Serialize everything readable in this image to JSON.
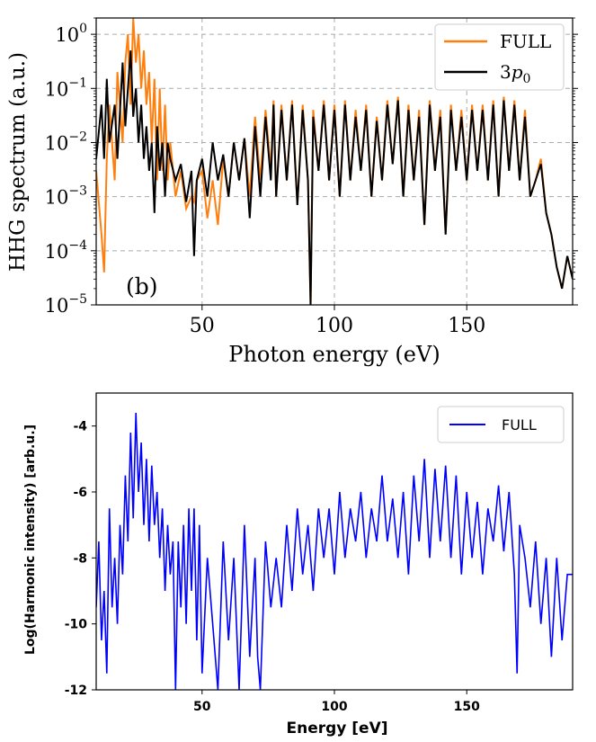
{
  "chart_data": [
    {
      "type": "line",
      "panel": "(b)",
      "xlabel": "Photon energy (eV)",
      "ylabel": "HHG spectrum (a.u.)",
      "yscale": "log",
      "xlim": [
        10,
        190
      ],
      "ylim": [
        1e-05,
        2
      ],
      "xticks": [
        50,
        100,
        150
      ],
      "xtick_labels": [
        "50",
        "100",
        "150"
      ],
      "yticks": [
        1e-05,
        0.0001,
        0.001,
        0.01,
        0.1,
        1
      ],
      "ytick_base": "10",
      "ytick_exponents": [
        "−5",
        "−4",
        "−3",
        "−2",
        "−1",
        "0"
      ],
      "grid": true,
      "legend_position": "top-right",
      "series": [
        {
          "name": "FULL",
          "color": "#ff7f0e",
          "x": [
            10,
            12,
            13,
            14,
            15,
            17,
            18,
            20,
            21,
            22,
            23,
            24,
            25,
            26,
            27,
            28,
            29,
            30,
            31,
            32,
            33,
            34,
            35,
            36,
            37,
            38,
            40,
            42,
            44,
            46,
            47,
            48,
            50,
            52,
            54,
            56,
            58,
            60,
            62,
            64,
            66,
            68,
            70,
            72,
            74,
            76,
            77,
            78,
            80,
            82,
            84,
            86,
            88,
            90,
            91,
            92,
            94,
            96,
            98,
            100,
            102,
            104,
            106,
            108,
            110,
            112,
            114,
            116,
            118,
            120,
            122,
            124,
            126,
            128,
            130,
            132,
            134,
            136,
            138,
            140,
            142,
            144,
            146,
            148,
            150,
            152,
            154,
            156,
            158,
            160,
            162,
            164,
            166,
            168,
            170,
            172,
            174,
            176,
            178,
            180,
            182,
            184,
            186,
            188,
            190
          ],
          "y": [
            0.003,
            0.0002,
            4e-05,
            0.005,
            0.05,
            0.002,
            0.2,
            0.01,
            0.3,
            1.0,
            0.05,
            2.0,
            0.3,
            1.0,
            0.1,
            0.5,
            0.05,
            0.2,
            0.01,
            0.15,
            0.002,
            0.1,
            0.003,
            0.05,
            0.002,
            0.01,
            0.001,
            0.003,
            0.0006,
            0.001,
            0.0008,
            0.002,
            0.003,
            0.0004,
            0.002,
            0.0003,
            0.005,
            0.001,
            0.01,
            0.002,
            0.012,
            0.001,
            0.03,
            0.002,
            0.04,
            0.003,
            0.06,
            0.001,
            0.05,
            0.002,
            0.06,
            0.0007,
            0.05,
            0.002,
            1e-05,
            0.04,
            0.003,
            0.06,
            0.002,
            0.05,
            0.001,
            0.06,
            0.002,
            0.04,
            0.003,
            0.05,
            0.001,
            0.03,
            0.002,
            0.06,
            0.004,
            0.07,
            0.001,
            0.05,
            0.002,
            0.04,
            0.0003,
            0.06,
            0.003,
            0.04,
            0.0002,
            0.05,
            0.003,
            0.04,
            0.002,
            0.05,
            0.003,
            0.05,
            0.002,
            0.06,
            0.001,
            0.07,
            0.003,
            0.06,
            0.002,
            0.04,
            0.001,
            0.002,
            0.005,
            0.0005,
            0.0002,
            5e-05,
            2e-05,
            8e-05,
            3e-05
          ]
        },
        {
          "name": "3p0",
          "color": "#000000",
          "x": [
            10,
            12,
            13,
            14,
            15,
            17,
            18,
            20,
            21,
            22,
            23,
            24,
            25,
            26,
            27,
            28,
            29,
            30,
            31,
            32,
            33,
            34,
            35,
            36,
            37,
            38,
            40,
            42,
            44,
            46,
            47,
            48,
            50,
            52,
            54,
            56,
            58,
            60,
            62,
            64,
            66,
            68,
            70,
            72,
            74,
            76,
            77,
            78,
            80,
            82,
            84,
            86,
            88,
            90,
            91,
            92,
            94,
            96,
            98,
            100,
            102,
            104,
            106,
            108,
            110,
            112,
            114,
            116,
            118,
            120,
            122,
            124,
            126,
            128,
            130,
            132,
            134,
            136,
            138,
            140,
            142,
            144,
            146,
            148,
            150,
            152,
            154,
            156,
            158,
            160,
            162,
            164,
            166,
            168,
            170,
            172,
            174,
            176,
            178,
            180,
            182,
            184,
            186,
            188,
            190
          ],
          "y": [
            0.005,
            0.05,
            0.005,
            0.15,
            0.01,
            0.05,
            0.005,
            0.3,
            0.02,
            0.1,
            0.5,
            0.03,
            0.1,
            0.01,
            0.05,
            0.005,
            0.02,
            0.003,
            0.01,
            0.0005,
            0.02,
            0.003,
            0.01,
            0.001,
            0.01,
            0.005,
            0.002,
            0.004,
            0.0008,
            0.003,
            8e-05,
            0.002,
            0.005,
            0.001,
            0.01,
            0.002,
            0.006,
            0.001,
            0.01,
            0.002,
            0.012,
            0.0004,
            0.02,
            0.001,
            0.03,
            0.002,
            0.05,
            0.001,
            0.04,
            0.002,
            0.05,
            0.0007,
            0.04,
            0.002,
            1e-05,
            0.03,
            0.003,
            0.05,
            0.002,
            0.04,
            0.001,
            0.05,
            0.002,
            0.03,
            0.003,
            0.04,
            0.001,
            0.025,
            0.002,
            0.05,
            0.004,
            0.06,
            0.001,
            0.04,
            0.002,
            0.03,
            0.0003,
            0.05,
            0.003,
            0.03,
            0.0002,
            0.04,
            0.003,
            0.03,
            0.002,
            0.04,
            0.003,
            0.04,
            0.002,
            0.05,
            0.001,
            0.06,
            0.003,
            0.05,
            0.002,
            0.03,
            0.001,
            0.002,
            0.004,
            0.0005,
            0.0002,
            5e-05,
            2e-05,
            8e-05,
            3e-05
          ]
        }
      ]
    },
    {
      "type": "line",
      "xlabel": "Energy [eV]",
      "ylabel": "Log(Harmonic intensity) [arb.u.]",
      "xlim": [
        10,
        190
      ],
      "ylim": [
        -12,
        -3
      ],
      "xticks": [
        50,
        100,
        150
      ],
      "yticks": [
        -12,
        -10,
        -8,
        -6,
        -4
      ],
      "grid": false,
      "legend_position": "top-right",
      "series": [
        {
          "name": "FULL",
          "color": "#0000ff",
          "x": [
            10,
            11,
            12,
            13,
            14,
            15,
            16,
            17,
            18,
            19,
            20,
            21,
            22,
            23,
            24,
            25,
            26,
            27,
            28,
            29,
            30,
            31,
            32,
            33,
            34,
            35,
            36,
            37,
            38,
            39,
            40,
            41,
            42,
            43,
            44,
            45,
            46,
            47,
            48,
            49,
            50,
            52,
            54,
            56,
            58,
            60,
            62,
            64,
            66,
            68,
            70,
            71,
            72,
            74,
            76,
            78,
            80,
            82,
            84,
            86,
            88,
            90,
            92,
            94,
            96,
            98,
            100,
            102,
            104,
            106,
            108,
            110,
            112,
            114,
            116,
            118,
            120,
            122,
            124,
            126,
            128,
            130,
            132,
            134,
            136,
            138,
            140,
            142,
            144,
            146,
            148,
            150,
            152,
            154,
            156,
            158,
            160,
            162,
            164,
            166,
            168,
            169,
            170,
            172,
            174,
            176,
            178,
            180,
            182,
            184,
            186,
            188,
            190
          ],
          "y": [
            -9.5,
            -7.5,
            -10.5,
            -9,
            -11.5,
            -6.5,
            -9.5,
            -8,
            -10,
            -7,
            -8.5,
            -5.5,
            -7.5,
            -4.2,
            -6.8,
            -3.6,
            -6,
            -4.5,
            -7,
            -5,
            -7.5,
            -5.2,
            -7,
            -6,
            -8,
            -6.5,
            -9,
            -7,
            -8.5,
            -7.5,
            -12,
            -7.5,
            -9.5,
            -7,
            -10,
            -6.5,
            -9,
            -6.5,
            -10.5,
            -7,
            -11.5,
            -8,
            -10,
            -12,
            -7.5,
            -10.5,
            -8,
            -12,
            -7,
            -11,
            -8,
            -11,
            -12,
            -7.5,
            -9.5,
            -8,
            -9.5,
            -7,
            -9,
            -6.5,
            -8.5,
            -7,
            -9,
            -6.5,
            -8,
            -6.5,
            -8.5,
            -6,
            -8,
            -6.5,
            -7.5,
            -6,
            -8,
            -6.5,
            -7.5,
            -5.5,
            -7.5,
            -6.2,
            -8,
            -6,
            -8.5,
            -5.5,
            -7.5,
            -5,
            -8,
            -5.3,
            -7.5,
            -5.2,
            -8,
            -5.5,
            -8.5,
            -6,
            -8,
            -6.3,
            -8.5,
            -6.5,
            -7.5,
            -5.8,
            -7.8,
            -6,
            -8.5,
            -11.5,
            -7,
            -8,
            -9.5,
            -7.5,
            -10,
            -8,
            -11,
            -8,
            -10.5,
            -8.5,
            -8.5
          ]
        }
      ]
    }
  ]
}
